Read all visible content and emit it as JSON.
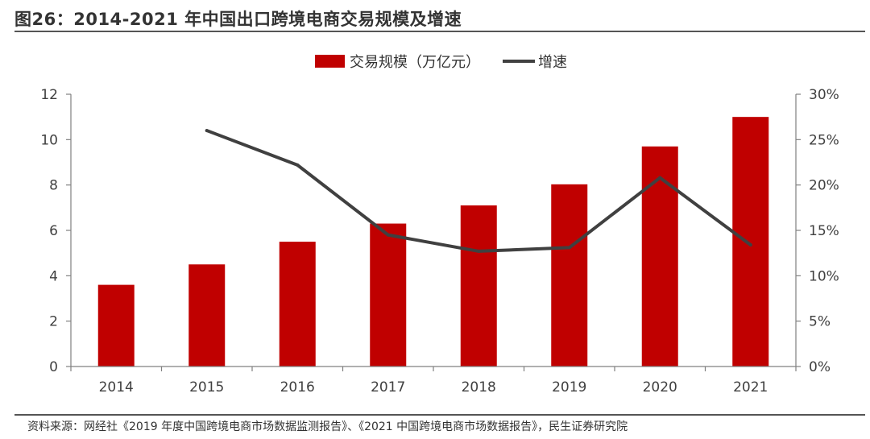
{
  "figure": {
    "title": "图26：2014-2021 年中国出口跨境电商交易规模及增速",
    "source": "资料来源：网经社《2019 年度中国跨境电商市场数据监测报告》、《2021 中国跨境电商市场数据报告》，民生证券研究院"
  },
  "chart_data": {
    "type": "bar",
    "categories": [
      "2014",
      "2015",
      "2016",
      "2017",
      "2018",
      "2019",
      "2020",
      "2021"
    ],
    "series": [
      {
        "name": "交易规模（万亿元）",
        "type": "bar",
        "axis": "left",
        "color": "#C00000",
        "values": [
          3.6,
          4.5,
          5.5,
          6.3,
          7.1,
          8.03,
          9.7,
          11.0
        ]
      },
      {
        "name": "增速",
        "type": "line",
        "axis": "right",
        "color": "#404040",
        "values": [
          null,
          0.26,
          0.222,
          0.145,
          0.127,
          0.131,
          0.208,
          0.134
        ]
      }
    ],
    "y_left": {
      "min": 0,
      "max": 12,
      "ticks": [
        "0",
        "2",
        "4",
        "6",
        "8",
        "10",
        "12"
      ]
    },
    "y_right": {
      "min": 0,
      "max": 0.3,
      "ticks": [
        "0%",
        "5%",
        "10%",
        "15%",
        "20%",
        "25%",
        "30%"
      ]
    },
    "legend": {
      "position": "top-center"
    },
    "grid": false
  }
}
